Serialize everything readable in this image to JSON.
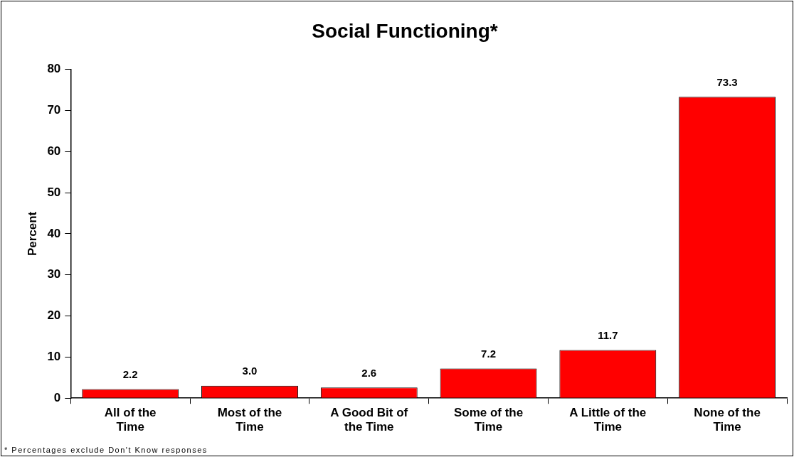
{
  "chart_data": {
    "type": "bar",
    "title": "Social Functioning*",
    "ylabel": "Percent",
    "categories": [
      "All of the Time",
      "Most of the Time",
      "A Good Bit of the Time",
      "Some of the Time",
      "A Little of the Time",
      "None of the Time"
    ],
    "values": [
      2.2,
      3.0,
      2.6,
      7.2,
      11.7,
      73.3
    ],
    "color": "#ff0000",
    "ylim": [
      0,
      80
    ],
    "yticks": [
      0,
      10,
      20,
      30,
      40,
      50,
      60,
      70,
      80
    ],
    "grid": false,
    "legend": false,
    "value_labels": [
      "2.2",
      "3.0",
      "2.6",
      "7.2",
      "11.7",
      "73.3"
    ],
    "annotations": [
      "* Percentages exclude Don't Know responses"
    ]
  }
}
